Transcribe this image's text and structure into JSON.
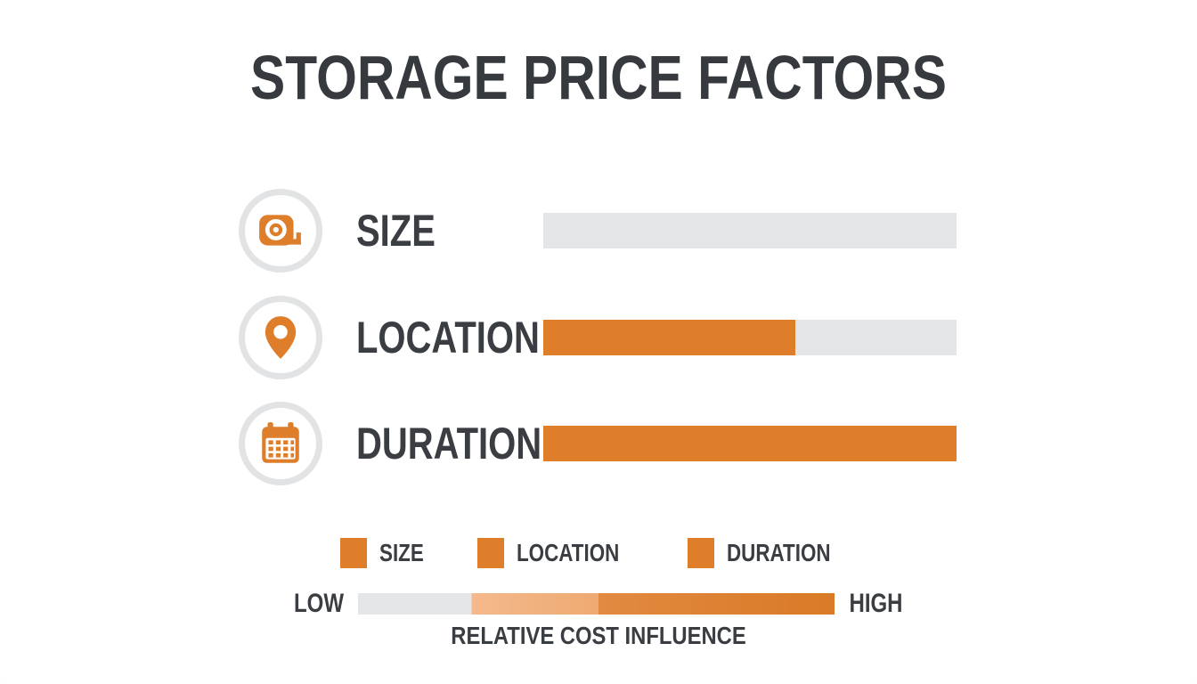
{
  "title": "STORAGE PRICE FACTORS",
  "colors": {
    "orange": "#DE7E2A",
    "track_gray": "#E5E6E8",
    "text_dark": "#3A3D41",
    "circle_ring": "#E2E3E4"
  },
  "rows": [
    {
      "label": "SIZE",
      "icon": "tape-measure-icon",
      "fill_percent": 0
    },
    {
      "label": "LOCATION",
      "icon": "map-pin-icon",
      "fill_percent": 61
    },
    {
      "label": "DURATION",
      "icon": "calendar-icon",
      "fill_percent": 100
    }
  ],
  "legend": [
    {
      "label": "SIZE"
    },
    {
      "label": "LOCATION"
    },
    {
      "label": "DURATION"
    }
  ],
  "scale": {
    "low_label": "LOW",
    "high_label": "HIGH",
    "caption": "RELATIVE COST INFLUENCE"
  },
  "chart_data": {
    "type": "bar",
    "orientation": "horizontal",
    "title": "STORAGE PRICE FACTORS",
    "categories": [
      "SIZE",
      "LOCATION",
      "DURATION"
    ],
    "values": [
      0,
      61,
      100
    ],
    "value_unit": "percent of LOW-HIGH scale (bar fill)",
    "xlabel": "RELATIVE COST INFLUENCE",
    "x_range_labels": [
      "LOW",
      "HIGH"
    ],
    "xlim": [
      0,
      100
    ],
    "legend_entries": [
      "SIZE",
      "LOCATION",
      "DURATION"
    ],
    "legend_position": "bottom",
    "grid": false,
    "bar_color": "#DE7E2A",
    "track_color": "#E5E6E8"
  }
}
